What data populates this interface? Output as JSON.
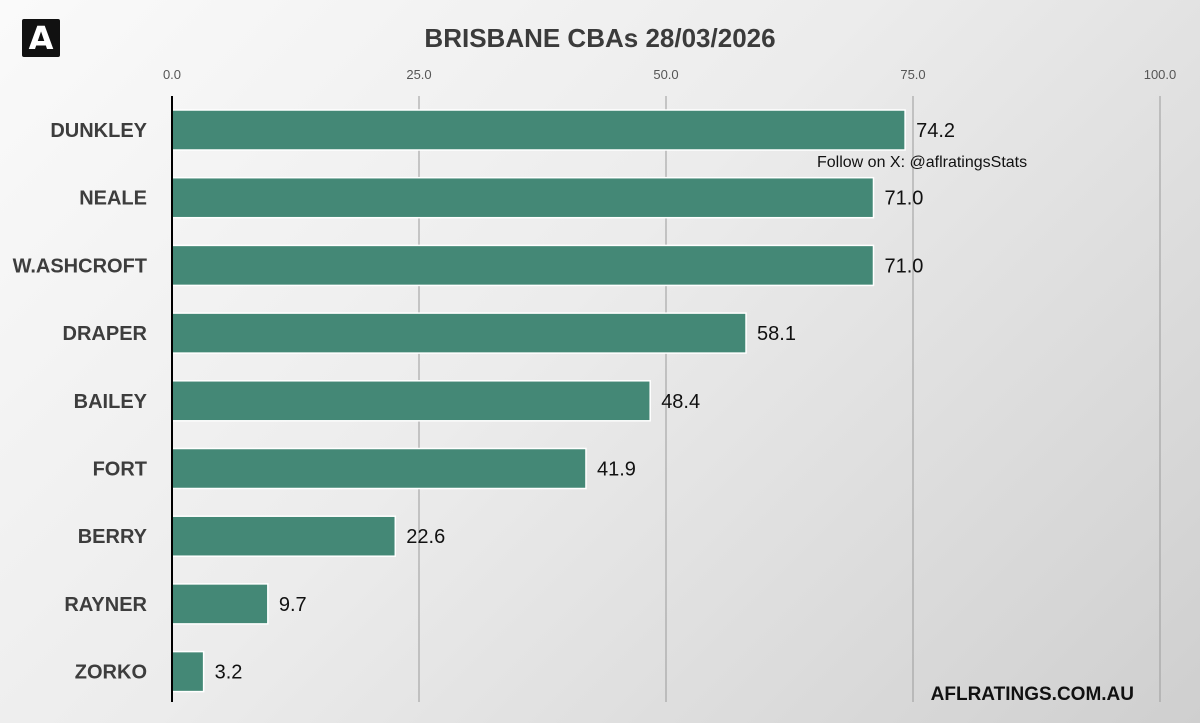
{
  "brand": {
    "logo_text": "A"
  },
  "chart_data": {
    "type": "bar",
    "orientation": "horizontal",
    "title": "BRISBANE CBAs 28/03/2026",
    "categories": [
      "DUNKLEY",
      "NEALE",
      "W.ASHCROFT",
      "DRAPER",
      "BAILEY",
      "FORT",
      "BERRY",
      "RAYNER",
      "ZORKO"
    ],
    "values": [
      74.2,
      71.0,
      71.0,
      58.1,
      48.4,
      41.9,
      22.6,
      9.7,
      3.2
    ],
    "value_labels": [
      "74.2",
      "71.0",
      "71.0",
      "58.1",
      "48.4",
      "41.9",
      "22.6",
      "9.7",
      "3.2"
    ],
    "xlim": [
      0,
      100
    ],
    "xticks": [
      0,
      25,
      50,
      75,
      100
    ],
    "xtick_labels": [
      "0.0",
      "25.0",
      "50.0",
      "75.0",
      "100.0"
    ],
    "grid": true,
    "tick_position": "top",
    "bar_color": "#448876",
    "annotation": "Follow on X: @aflratingsStats",
    "footer": "AFLRATINGS.COM.AU"
  }
}
